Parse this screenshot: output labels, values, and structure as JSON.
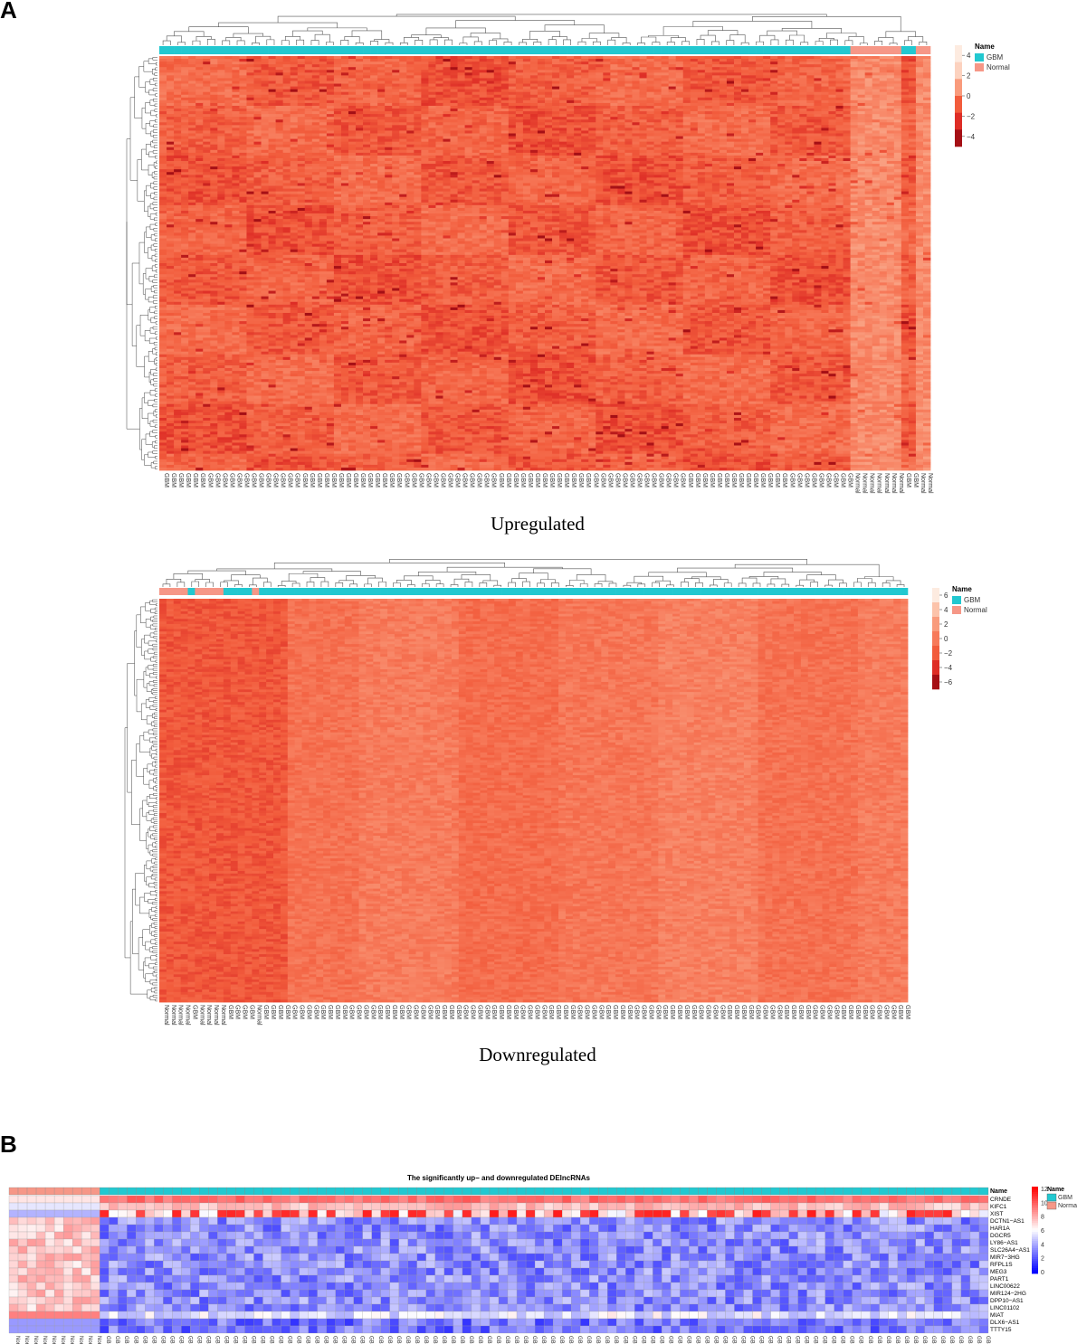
{
  "panel_a_label": "A",
  "panel_b_label": "B",
  "chart_data": [
    {
      "type": "heatmap",
      "panel": "A",
      "caption": "Upregulated",
      "legend_title": "Name",
      "groups": [
        {
          "name": "GBM",
          "color": "#22c8d0"
        },
        {
          "name": "Normal",
          "color": "#f69787"
        }
      ],
      "scale_ticks": [
        "4",
        "2",
        "0",
        "−2",
        "−4"
      ],
      "scale_colors": [
        "#a50f15",
        "#de2d26",
        "#f25c3c",
        "#f99b7c",
        "#fcd2bf",
        "#fdebe0"
      ],
      "column_groups_in_order": [
        "GBM x 95",
        "Normal x 7",
        "GBM x 2",
        "Normal x 2"
      ],
      "col_label_pattern": "GBM columns then Normal columns",
      "rows_approx": 320,
      "columns_approx": 106
    },
    {
      "type": "heatmap",
      "panel": "A",
      "caption": "Downregulated",
      "legend_title": "Name",
      "groups": [
        {
          "name": "GBM",
          "color": "#22c8d0"
        },
        {
          "name": "Normal",
          "color": "#f69787"
        }
      ],
      "scale_ticks": [
        "6",
        "4",
        "2",
        "0",
        "−2",
        "−4",
        "−6"
      ],
      "scale_colors": [
        "#a50f15",
        "#de2d26",
        "#f25c3c",
        "#f77a5a",
        "#f99b7c",
        "#fcc3aa",
        "#fdebe0"
      ],
      "column_groups_in_order": [
        "Normal x 4",
        "GBM x 1",
        "Normal x 4",
        "GBM x 4",
        "Normal x 1",
        "GBM x 91"
      ],
      "rows_approx": 420,
      "columns_approx": 105
    },
    {
      "type": "heatmap",
      "panel": "B",
      "title": "The significantly up− and downregulated DElncRNAs",
      "legend_title": "Name",
      "groups": [
        {
          "name": "GBM",
          "color": "#22c8d0"
        },
        {
          "name": "Normal",
          "color": "#f69787"
        }
      ],
      "scale_ticks": [
        "12",
        "10",
        "8",
        "6",
        "4",
        "2",
        "0"
      ],
      "scale_colors": [
        "#ff0000",
        "#ffffff",
        "#0000ff"
      ],
      "rows": [
        "CRNDE",
        "KIFC1",
        "XIST",
        "DCTN1−AS1",
        "HAR1A",
        "DGCR5",
        "LY86−AS1",
        "SLC26A4−AS1",
        "MIR7−3HG",
        "RFPL1S",
        "MEG3",
        "PART1",
        "LINC00622",
        "MIR124−2HG",
        "DPP10−AS1",
        "LINC01102",
        "MIAT",
        "DLX6−AS1",
        "TTTY15"
      ],
      "column_groups_in_order": [
        "Normal x 10",
        "GBM x 98"
      ],
      "col_labels": [
        "Normal",
        "GBM"
      ]
    }
  ]
}
